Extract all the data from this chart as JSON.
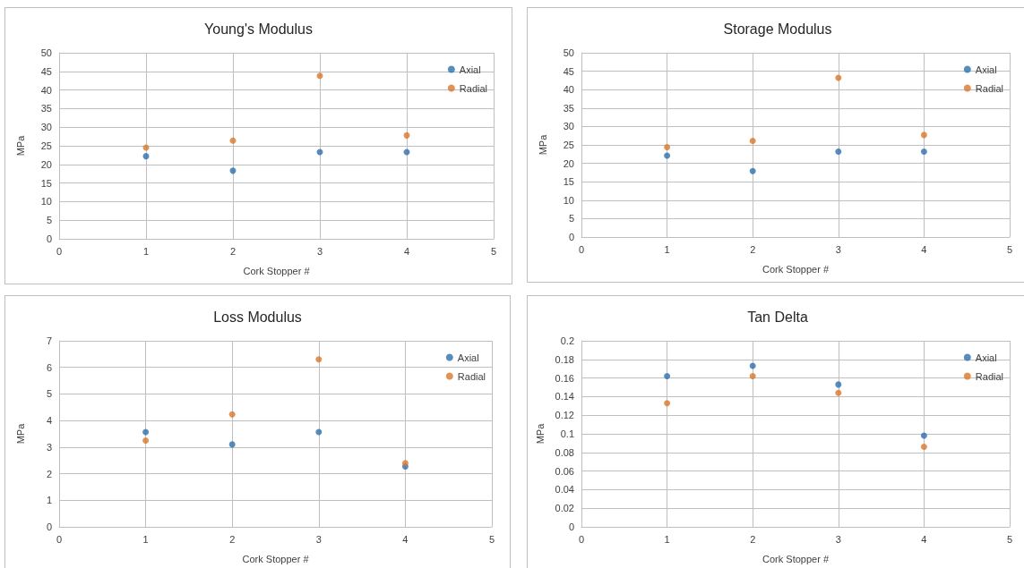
{
  "chart_data": [
    {
      "type": "scatter",
      "title": "Young's Modulus",
      "xlabel": "Cork Stopper #",
      "ylabel": "MPa",
      "x": [
        1,
        2,
        3,
        4
      ],
      "xlim": [
        0,
        5
      ],
      "xticks": [
        0,
        1,
        2,
        3,
        4,
        5
      ],
      "ylim": [
        0,
        50
      ],
      "yticks": [
        0,
        5,
        10,
        15,
        20,
        25,
        30,
        35,
        40,
        45,
        50
      ],
      "grid": true,
      "legend": "top right",
      "marker": "circle",
      "series": [
        {
          "name": "Axial",
          "color": "#2e6fad",
          "values": [
            22.2,
            18.3,
            23.3,
            23.3
          ]
        },
        {
          "name": "Radial",
          "color": "#d9782d",
          "values": [
            24.5,
            26.4,
            43.8,
            27.8
          ]
        }
      ]
    },
    {
      "type": "scatter",
      "title": "Storage Modulus",
      "xlabel": "Cork Stopper #",
      "ylabel": "MPa",
      "x": [
        1,
        2,
        3,
        4
      ],
      "xlim": [
        0,
        5
      ],
      "xticks": [
        0,
        1,
        2,
        3,
        4,
        5
      ],
      "ylim": [
        0,
        50
      ],
      "yticks": [
        0,
        5,
        10,
        15,
        20,
        25,
        30,
        35,
        40,
        45,
        50
      ],
      "grid": true,
      "legend": "top right",
      "marker": "circle",
      "series": [
        {
          "name": "Axial",
          "color": "#2e6fad",
          "values": [
            22.1,
            17.9,
            23.2,
            23.2
          ]
        },
        {
          "name": "Radial",
          "color": "#d9782d",
          "values": [
            24.4,
            26.1,
            43.2,
            27.7
          ]
        }
      ]
    },
    {
      "type": "scatter",
      "title": "Loss Modulus",
      "xlabel": "Cork Stopper #",
      "ylabel": "MPa",
      "x": [
        1,
        2,
        3,
        4
      ],
      "xlim": [
        0,
        5
      ],
      "xticks": [
        0,
        1,
        2,
        3,
        4,
        5
      ],
      "ylim": [
        0,
        7
      ],
      "yticks": [
        0,
        1,
        2,
        3,
        4,
        5,
        6,
        7
      ],
      "grid": true,
      "legend": "top right",
      "marker": "circle",
      "series": [
        {
          "name": "Axial",
          "color": "#2e6fad",
          "values": [
            3.57,
            3.1,
            3.57,
            2.27
          ]
        },
        {
          "name": "Radial",
          "color": "#d9782d",
          "values": [
            3.25,
            4.23,
            6.3,
            2.4
          ]
        }
      ]
    },
    {
      "type": "scatter",
      "title": "Tan Delta",
      "xlabel": "Cork Stopper #",
      "ylabel": "MPa",
      "x": [
        1,
        2,
        3,
        4
      ],
      "xlim": [
        0,
        5
      ],
      "xticks": [
        0,
        1,
        2,
        3,
        4,
        5
      ],
      "ylim": [
        0,
        0.2
      ],
      "yticks": [
        0,
        0.02,
        0.04,
        0.06,
        0.08,
        0.1,
        0.12,
        0.14,
        0.16,
        0.18,
        0.2
      ],
      "grid": true,
      "legend": "top right",
      "marker": "circle",
      "series": [
        {
          "name": "Axial",
          "color": "#2e6fad",
          "values": [
            0.162,
            0.173,
            0.153,
            0.098
          ]
        },
        {
          "name": "Radial",
          "color": "#d9782d",
          "values": [
            0.133,
            0.162,
            0.144,
            0.086
          ]
        }
      ]
    }
  ]
}
